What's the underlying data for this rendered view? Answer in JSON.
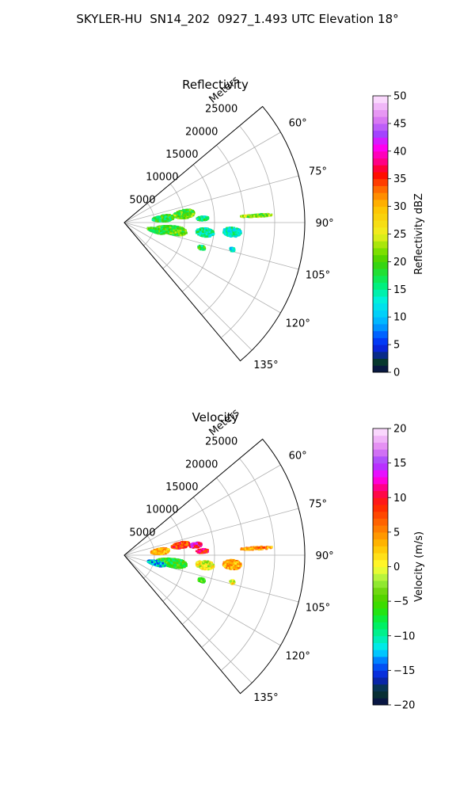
{
  "figure_title": "SKYLER-HU  SN14_202  0927_1.493 UTC Elevation 18°",
  "chart_data": [
    {
      "type": "heatmap",
      "projection": "polar-sector",
      "title": "Reflectivity",
      "radial_label": "Meters",
      "radial_ticks": [
        5000,
        10000,
        15000,
        20000,
        25000
      ],
      "radial_tick_labels": [
        "5000",
        "10000",
        "15000",
        "20000",
        "25000"
      ],
      "radial_range": [
        0,
        30000
      ],
      "azimuth_range": [
        50,
        140
      ],
      "azimuth_ticks": [
        60,
        75,
        90,
        105,
        120,
        135
      ],
      "azimuth_tick_labels": [
        "60°",
        "75°",
        "90°",
        "105°",
        "120°",
        "135°"
      ],
      "grid": true,
      "colorbar": {
        "label": "Reflectivity dBZ",
        "range": [
          0,
          50
        ],
        "ticks": [
          0,
          5,
          10,
          15,
          20,
          25,
          30,
          35,
          40,
          45,
          50
        ],
        "tick_labels": [
          "0",
          "5",
          "10",
          "15",
          "20",
          "25",
          "30",
          "35",
          "40",
          "45",
          "50"
        ],
        "stops": [
          {
            "v": 0,
            "c": "#0a0a4a"
          },
          {
            "v": 2,
            "c": "#073b2c"
          },
          {
            "v": 4,
            "c": "#0a1fd0"
          },
          {
            "v": 6,
            "c": "#0040ff"
          },
          {
            "v": 8,
            "c": "#0090ff"
          },
          {
            "v": 10,
            "c": "#00c8ff"
          },
          {
            "v": 13,
            "c": "#00f0e0"
          },
          {
            "v": 16,
            "c": "#00f070"
          },
          {
            "v": 20,
            "c": "#40d000"
          },
          {
            "v": 22,
            "c": "#80e000"
          },
          {
            "v": 25,
            "c": "#f0f020"
          },
          {
            "v": 30,
            "c": "#ffc000"
          },
          {
            "v": 33,
            "c": "#ff7000"
          },
          {
            "v": 36,
            "c": "#ff0000"
          },
          {
            "v": 38,
            "c": "#ff0080"
          },
          {
            "v": 41,
            "c": "#ff00ff"
          },
          {
            "v": 43,
            "c": "#a040ff"
          },
          {
            "v": 46,
            "c": "#e080f0"
          },
          {
            "v": 50,
            "c": "#ffe8ff"
          }
        ]
      },
      "echoes": [
        {
          "az": 84,
          "r": 6500,
          "daz": 9,
          "dr": 3500,
          "value": 18
        },
        {
          "az": 82,
          "r": 10000,
          "daz": 8,
          "dr": 3500,
          "value": 20
        },
        {
          "az": 87,
          "r": 13000,
          "daz": 3,
          "dr": 2000,
          "value": 16
        },
        {
          "az": 99,
          "r": 8000,
          "daz": 10,
          "dr": 5000,
          "value": 20
        },
        {
          "az": 104,
          "r": 5500,
          "daz": 8,
          "dr": 3000,
          "value": 19
        },
        {
          "az": 97,
          "r": 13500,
          "daz": 6,
          "dr": 3000,
          "value": 15
        },
        {
          "az": 95,
          "r": 18000,
          "daz": 5,
          "dr": 3000,
          "value": 14
        },
        {
          "az": 108,
          "r": 13500,
          "daz": 3,
          "dr": 1200,
          "value": 18
        },
        {
          "az": 104,
          "r": 18500,
          "daz": 2,
          "dr": 800,
          "value": 12
        },
        {
          "az": 87,
          "r": 22000,
          "daz": 1.2,
          "dr": 5500,
          "value": 22
        }
      ]
    },
    {
      "type": "heatmap",
      "projection": "polar-sector",
      "title": "Velocity",
      "radial_label": "Meters",
      "radial_ticks": [
        5000,
        10000,
        15000,
        20000,
        25000
      ],
      "radial_tick_labels": [
        "5000",
        "10000",
        "15000",
        "20000",
        "25000"
      ],
      "radial_range": [
        0,
        30000
      ],
      "azimuth_range": [
        50,
        140
      ],
      "azimuth_ticks": [
        60,
        75,
        90,
        105,
        120,
        135
      ],
      "azimuth_tick_labels": [
        "60°",
        "75°",
        "90°",
        "105°",
        "120°",
        "135°"
      ],
      "grid": true,
      "colorbar": {
        "label": "Velocity (m/s)",
        "range": [
          -20,
          20
        ],
        "ticks": [
          -20,
          -15,
          -10,
          -5,
          0,
          5,
          10,
          15,
          20
        ],
        "tick_labels": [
          "−20",
          "−15",
          "−10",
          "−5",
          "0",
          "5",
          "10",
          "15",
          "20"
        ],
        "stops": [
          {
            "v": -20,
            "c": "#0a0a4a"
          },
          {
            "v": -18,
            "c": "#073b2c"
          },
          {
            "v": -16,
            "c": "#0a1fd0"
          },
          {
            "v": -14,
            "c": "#0060ff"
          },
          {
            "v": -12,
            "c": "#00e8ff"
          },
          {
            "v": -10,
            "c": "#00f0a0"
          },
          {
            "v": -8,
            "c": "#00f050"
          },
          {
            "v": -6,
            "c": "#30e000"
          },
          {
            "v": -4,
            "c": "#60d000"
          },
          {
            "v": -2,
            "c": "#a0f040"
          },
          {
            "v": 0,
            "c": "#ffff30"
          },
          {
            "v": 3,
            "c": "#ffc000"
          },
          {
            "v": 6,
            "c": "#ff7000"
          },
          {
            "v": 9,
            "c": "#ff2000"
          },
          {
            "v": 11,
            "c": "#ff0060"
          },
          {
            "v": 13,
            "c": "#ff00ff"
          },
          {
            "v": 15,
            "c": "#a040ff"
          },
          {
            "v": 17,
            "c": "#e080f0"
          },
          {
            "v": 20,
            "c": "#ffe8ff"
          }
        ]
      },
      "echoes": [
        {
          "az": 84,
          "r": 6000,
          "daz": 9,
          "dr": 3000,
          "value": 4
        },
        {
          "az": 80,
          "r": 9500,
          "daz": 6,
          "dr": 3000,
          "value": 8
        },
        {
          "az": 82,
          "r": 12000,
          "daz": 4,
          "dr": 2000,
          "value": 12
        },
        {
          "az": 87,
          "r": 13000,
          "daz": 3,
          "dr": 2000,
          "value": 10
        },
        {
          "az": 99,
          "r": 8000,
          "daz": 10,
          "dr": 5000,
          "value": -6
        },
        {
          "az": 104,
          "r": 5500,
          "daz": 8,
          "dr": 3000,
          "value": -12
        },
        {
          "az": 97,
          "r": 13500,
          "daz": 6,
          "dr": 3000,
          "value": 0
        },
        {
          "az": 95,
          "r": 18000,
          "daz": 5,
          "dr": 3000,
          "value": 4
        },
        {
          "az": 108,
          "r": 13500,
          "daz": 3,
          "dr": 1200,
          "value": -5
        },
        {
          "az": 104,
          "r": 18500,
          "daz": 2,
          "dr": 800,
          "value": 0
        },
        {
          "az": 87,
          "r": 22000,
          "daz": 1.2,
          "dr": 5500,
          "value": 5
        }
      ]
    }
  ]
}
